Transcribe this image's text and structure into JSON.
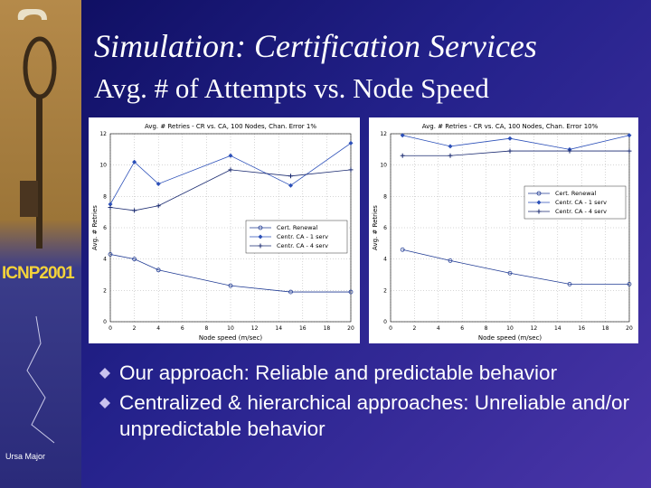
{
  "slide": {
    "title": "Simulation: Certification Services",
    "subtitle": "Avg. # of Attempts vs. Node Speed",
    "bullets": [
      "Our approach: Reliable and predictable behavior",
      "Centralized & hierarchical approaches: Unreliable and/or unpredictable behavior"
    ],
    "logo": "ICNP2001",
    "caption": "Ursa Major"
  },
  "chart_data": [
    {
      "type": "line",
      "title": "Avg. # Retries - CR vs. CA, 100 Nodes, Chan. Error 1%",
      "xlabel": "Node speed (m/sec)",
      "ylabel": "Avg. # Retries",
      "x": [
        0,
        2,
        4,
        10,
        15,
        20
      ],
      "series": [
        {
          "name": "Cert. Renewal",
          "color": "#1f3a93",
          "marker": "circle",
          "values": [
            4.3,
            4.0,
            3.3,
            2.3,
            1.9,
            1.9
          ]
        },
        {
          "name": "Centr. CA - 1 serv",
          "color": "#2b4fb8",
          "marker": "diamond",
          "values": [
            7.5,
            10.2,
            8.8,
            10.6,
            8.7,
            11.4
          ]
        },
        {
          "name": "Centr. CA - 4 serv",
          "color": "#1a2a70",
          "marker": "plus",
          "values": [
            7.3,
            7.1,
            7.4,
            9.7,
            9.3,
            9.7
          ]
        }
      ],
      "xlim": [
        0,
        20
      ],
      "ylim": [
        0,
        12
      ],
      "xticks": [
        0,
        2,
        4,
        6,
        8,
        10,
        12,
        14,
        16,
        18,
        20
      ],
      "yticks": [
        0,
        2,
        4,
        6,
        8,
        10,
        12
      ],
      "grid": true,
      "legend": "center right"
    },
    {
      "type": "line",
      "title": "Avg. # Retries - CR vs. CA, 100 Nodes, Chan. Error 10%",
      "xlabel": "Node speed (m/sec)",
      "ylabel": "Avg. # Retries",
      "x": [
        1,
        5,
        10,
        15,
        20
      ],
      "series": [
        {
          "name": "Cert. Renewal",
          "color": "#1f3a93",
          "marker": "circle",
          "values": [
            4.6,
            3.9,
            3.1,
            2.4,
            2.4
          ]
        },
        {
          "name": "Centr. CA - 1 serv",
          "color": "#2b4fb8",
          "marker": "diamond",
          "values": [
            11.9,
            11.2,
            11.7,
            11.0,
            11.9
          ]
        },
        {
          "name": "Centr. CA - 4 serv",
          "color": "#1a2a70",
          "marker": "plus",
          "values": [
            10.6,
            10.6,
            10.9,
            10.9,
            10.9
          ]
        }
      ],
      "xlim": [
        0,
        20
      ],
      "ylim": [
        0,
        12
      ],
      "xticks": [
        0,
        2,
        4,
        6,
        8,
        10,
        12,
        14,
        16,
        18,
        20
      ],
      "yticks": [
        0,
        2,
        4,
        6,
        8,
        10,
        12
      ],
      "grid": true,
      "legend": "upper right"
    }
  ]
}
